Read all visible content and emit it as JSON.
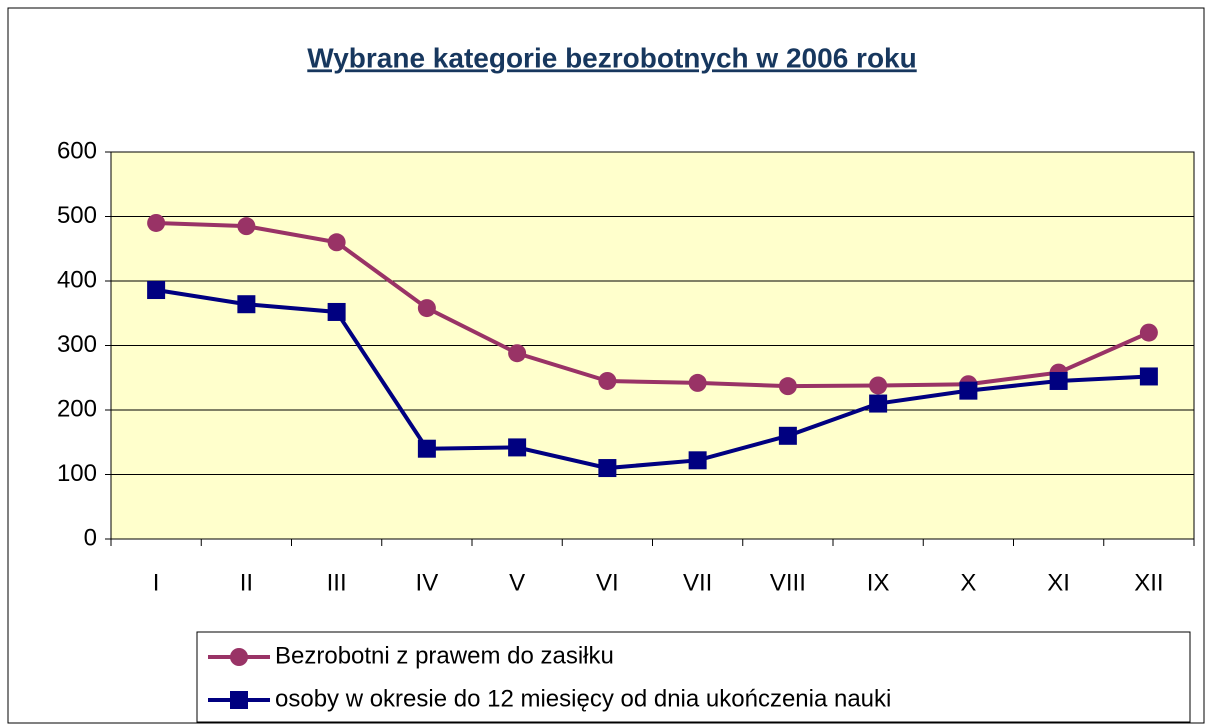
{
  "chart_data": {
    "type": "line",
    "title": "Wybrane kategorie bezrobotnych w 2006 roku",
    "categories": [
      "I",
      "II",
      "III",
      "IV",
      "V",
      "VI",
      "VII",
      "VIII",
      "IX",
      "X",
      "XI",
      "XII"
    ],
    "series": [
      {
        "name": "Bezrobotni z prawem do zasiłku",
        "color": "#993366",
        "marker": "circle",
        "values": [
          490,
          485,
          460,
          358,
          288,
          245,
          242,
          237,
          238,
          240,
          258,
          320
        ]
      },
      {
        "name": "osoby w okresie do 12 miesięcy od dnia ukończenia nauki",
        "color": "#000080",
        "marker": "square",
        "values": [
          386,
          364,
          352,
          140,
          142,
          110,
          122,
          160,
          210,
          230,
          245,
          252
        ]
      }
    ],
    "ylim": [
      0,
      600
    ],
    "yticks": [
      0,
      100,
      200,
      300,
      400,
      500,
      600
    ],
    "grid": true,
    "legend": "bottom"
  }
}
